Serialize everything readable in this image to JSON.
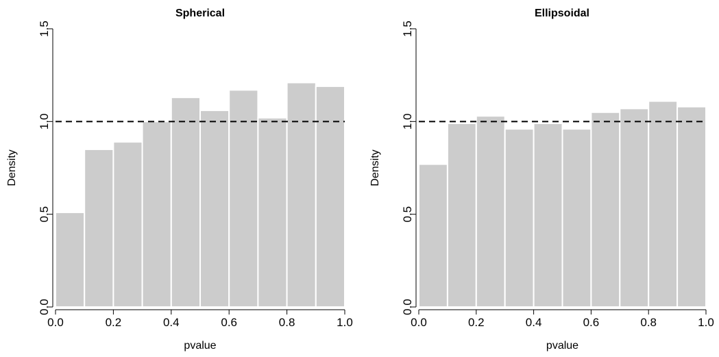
{
  "chart_data": [
    {
      "type": "bar",
      "title": "Spherical",
      "xlabel": "pvalue",
      "ylabel": "Density",
      "bin_edges": [
        0.0,
        0.1,
        0.2,
        0.3,
        0.4,
        0.5,
        0.6,
        0.7,
        0.8,
        0.9,
        1.0
      ],
      "values": [
        0.51,
        0.85,
        0.89,
        1.0,
        1.13,
        1.06,
        1.17,
        1.02,
        1.21,
        1.19
      ],
      "xlim": [
        0.0,
        1.0
      ],
      "ylim": [
        0.0,
        1.5
      ],
      "xticks": [
        "0.0",
        "0.2",
        "0.4",
        "0.6",
        "0.8",
        "1.0"
      ],
      "yticks": [
        "0.0",
        "0.5",
        "1.0",
        "1.5"
      ],
      "reference_line_y": 1.0,
      "grid": false
    },
    {
      "type": "bar",
      "title": "Ellipsoidal",
      "xlabel": "pvalue",
      "ylabel": "Density",
      "bin_edges": [
        0.0,
        0.1,
        0.2,
        0.3,
        0.4,
        0.5,
        0.6,
        0.7,
        0.8,
        0.9,
        1.0
      ],
      "values": [
        0.77,
        0.99,
        1.03,
        0.96,
        0.99,
        0.96,
        1.05,
        1.07,
        1.11,
        1.08
      ],
      "xlim": [
        0.0,
        1.0
      ],
      "ylim": [
        0.0,
        1.5
      ],
      "xticks": [
        "0.0",
        "0.2",
        "0.4",
        "0.6",
        "0.8",
        "1.0"
      ],
      "yticks": [
        "0.0",
        "0.5",
        "1.0",
        "1.5"
      ],
      "reference_line_y": 1.0,
      "grid": false
    }
  ],
  "colors": {
    "bar_fill": "#cccccc",
    "bar_border": "#ffffff",
    "axis": "#000000"
  }
}
